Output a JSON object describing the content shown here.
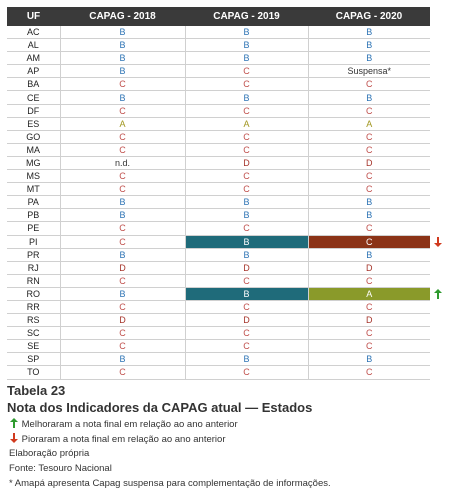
{
  "table": {
    "headers": [
      "UF",
      "CAPAG - 2018",
      "CAPAG - 2019",
      "CAPAG - 2020"
    ],
    "rows": [
      [
        "AC",
        "B",
        "B",
        "B"
      ],
      [
        "AL",
        "B",
        "B",
        "B"
      ],
      [
        "AM",
        "B",
        "B",
        "B"
      ],
      [
        "AP",
        "B",
        "C",
        "Suspensa*"
      ],
      [
        "BA",
        "C",
        "C",
        "C"
      ],
      [
        "CE",
        "B",
        "B",
        "B"
      ],
      [
        "DF",
        "C",
        "C",
        "C"
      ],
      [
        "ES",
        "A",
        "A",
        "A"
      ],
      [
        "GO",
        "C",
        "C",
        "C"
      ],
      [
        "MA",
        "C",
        "C",
        "C"
      ],
      [
        "MG",
        "n.d.",
        "D",
        "D"
      ],
      [
        "MS",
        "C",
        "C",
        "C"
      ],
      [
        "MT",
        "C",
        "C",
        "C"
      ],
      [
        "PA",
        "B",
        "B",
        "B"
      ],
      [
        "PB",
        "B",
        "B",
        "B"
      ],
      [
        "PE",
        "C",
        "C",
        "C"
      ],
      [
        "PI",
        "C",
        "B",
        "C"
      ],
      [
        "PR",
        "B",
        "B",
        "B"
      ],
      [
        "RJ",
        "D",
        "D",
        "D"
      ],
      [
        "RN",
        "C",
        "C",
        "C"
      ],
      [
        "RO",
        "B",
        "B",
        "A"
      ],
      [
        "RR",
        "C",
        "C",
        "C"
      ],
      [
        "RS",
        "D",
        "D",
        "D"
      ],
      [
        "SC",
        "C",
        "C",
        "C"
      ],
      [
        "SE",
        "C",
        "C",
        "C"
      ],
      [
        "SP",
        "B",
        "B",
        "B"
      ],
      [
        "TO",
        "C",
        "C",
        "C"
      ]
    ]
  },
  "caption": {
    "label": "Tabela 23",
    "title": "Nota dos Indicadores da CAPAG atual — Estados"
  },
  "legend": [
    "Melhoraram a nota final em relação ao ano anterior",
    "Pioraram a nota final em relação ao ano anterior"
  ],
  "notes": [
    "Elaboração própria",
    "Fonte: Tesouro Nacional",
    "* Amapá apresenta Capag suspensa para complementação de informações."
  ]
}
